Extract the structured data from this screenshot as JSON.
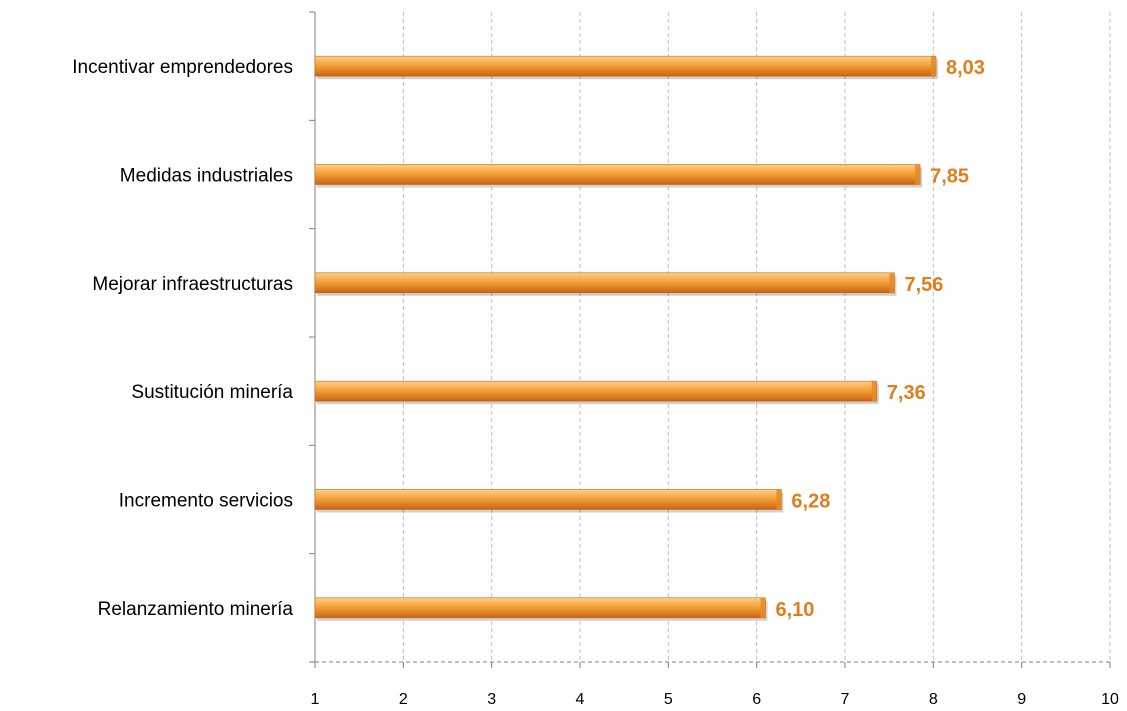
{
  "chart_data": {
    "type": "bar",
    "orientation": "horizontal",
    "categories": [
      "Incentivar emprendedores",
      "Medidas industriales",
      "Mejorar infraestructuras",
      "Sustitución minería",
      "Incremento servicios",
      "Relanzamiento minería"
    ],
    "values": [
      8.03,
      7.85,
      7.56,
      7.36,
      6.28,
      6.1
    ],
    "value_labels": [
      "8,03",
      "7,85",
      "7,56",
      "7,36",
      "6,28",
      "6,10"
    ],
    "x_ticks": [
      "1",
      "2",
      "3",
      "4",
      "5",
      "6",
      "7",
      "8",
      "9",
      "10"
    ],
    "xlim": [
      1,
      10
    ],
    "title": "",
    "xlabel": "",
    "ylabel": "",
    "grid": "vertical dashed",
    "legend": "none",
    "colors": {
      "bar_light": "#FBD08A",
      "bar_mid": "#F5A13A",
      "bar_dark": "#C8650F",
      "bar_end": "#E58A25",
      "data_label": "#E27D1E",
      "grid": "#BFBFBF",
      "axis": "#808080"
    }
  }
}
